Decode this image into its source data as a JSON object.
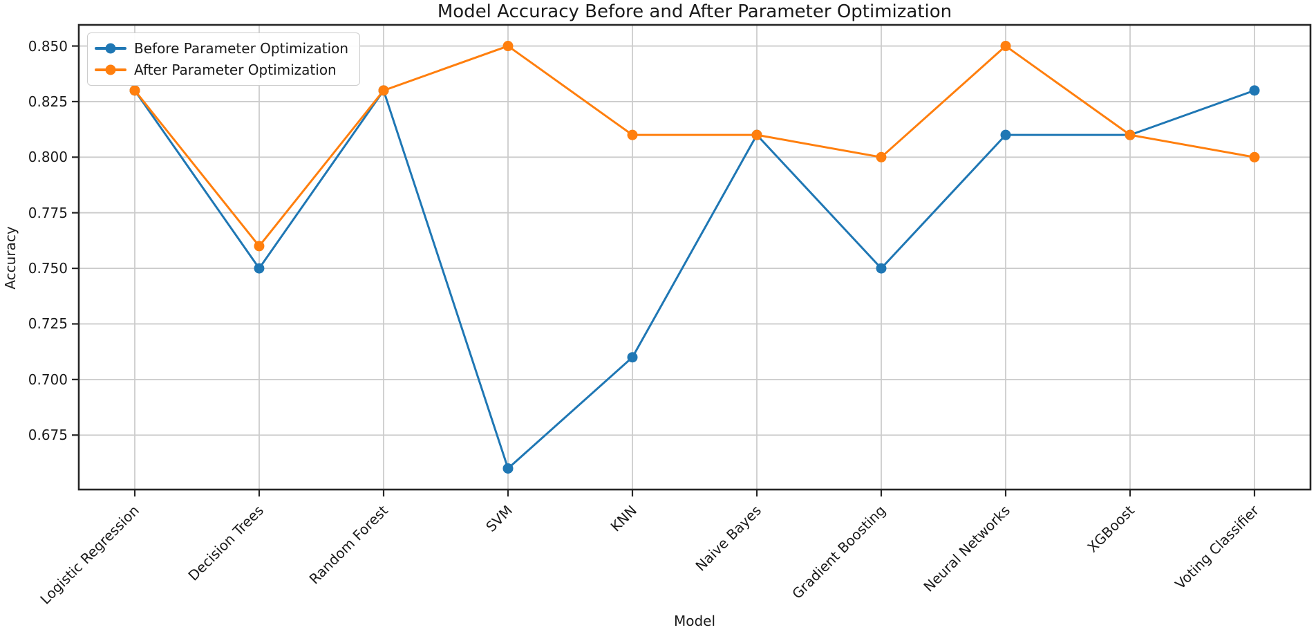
{
  "chart_data": {
    "type": "line",
    "title": "Model Accuracy Before and After Parameter Optimization",
    "xlabel": "Model",
    "ylabel": "Accuracy",
    "categories": [
      "Logistic Regression",
      "Decision Trees",
      "Random Forest",
      "SVM",
      "KNN",
      "Naive Bayes",
      "Gradient Boosting",
      "Neural Networks",
      "XGBoost",
      "Voting Classifier"
    ],
    "series": [
      {
        "name": "Before Parameter Optimization",
        "color": "#1f77b4",
        "values": [
          0.83,
          0.75,
          0.83,
          0.66,
          0.71,
          0.81,
          0.75,
          0.81,
          0.81,
          0.83
        ]
      },
      {
        "name": "After Parameter Optimization",
        "color": "#ff7f0e",
        "values": [
          0.83,
          0.76,
          0.83,
          0.85,
          0.81,
          0.81,
          0.8,
          0.85,
          0.81,
          0.8
        ]
      }
    ],
    "yticks": [
      0.675,
      0.7,
      0.725,
      0.75,
      0.775,
      0.8,
      0.825,
      0.85
    ],
    "ytick_decimals": 3,
    "ylim": [
      0.6505,
      0.8595
    ],
    "grid": true,
    "legend_position": "upper left",
    "marker": "circle",
    "colors": {
      "grid": "#cccccc",
      "axis": "#262626",
      "text": "#1a1a1a",
      "background": "#ffffff"
    }
  }
}
